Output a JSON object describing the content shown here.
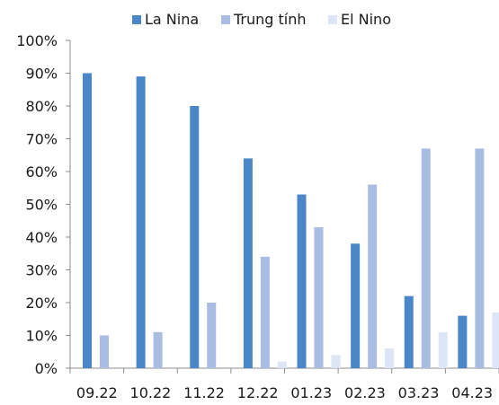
{
  "chart_data": {
    "type": "bar",
    "title": "",
    "xlabel": "",
    "ylabel": "",
    "categories": [
      "09.22",
      "10.22",
      "11.22",
      "12.22",
      "01.23",
      "02.23",
      "03.23",
      "04.23"
    ],
    "series": [
      {
        "name": "La Nina",
        "color": "#4A86C8",
        "values": [
          90,
          89,
          80,
          64,
          53,
          38,
          22,
          16
        ]
      },
      {
        "name": "Trung tính",
        "color": "#A9BDE2",
        "values": [
          10,
          11,
          20,
          34,
          43,
          56,
          67,
          67
        ]
      },
      {
        "name": "El Nino",
        "color": "#DDE6F6",
        "values": [
          0,
          0,
          0,
          2,
          4,
          6,
          11,
          17
        ]
      }
    ],
    "ylim": [
      0,
      100
    ],
    "yticks": [
      "0%",
      "10%",
      "20%",
      "30%",
      "40%",
      "50%",
      "60%",
      "70%",
      "80%",
      "90%",
      "100%"
    ],
    "grid": false,
    "legend_position": "top"
  }
}
